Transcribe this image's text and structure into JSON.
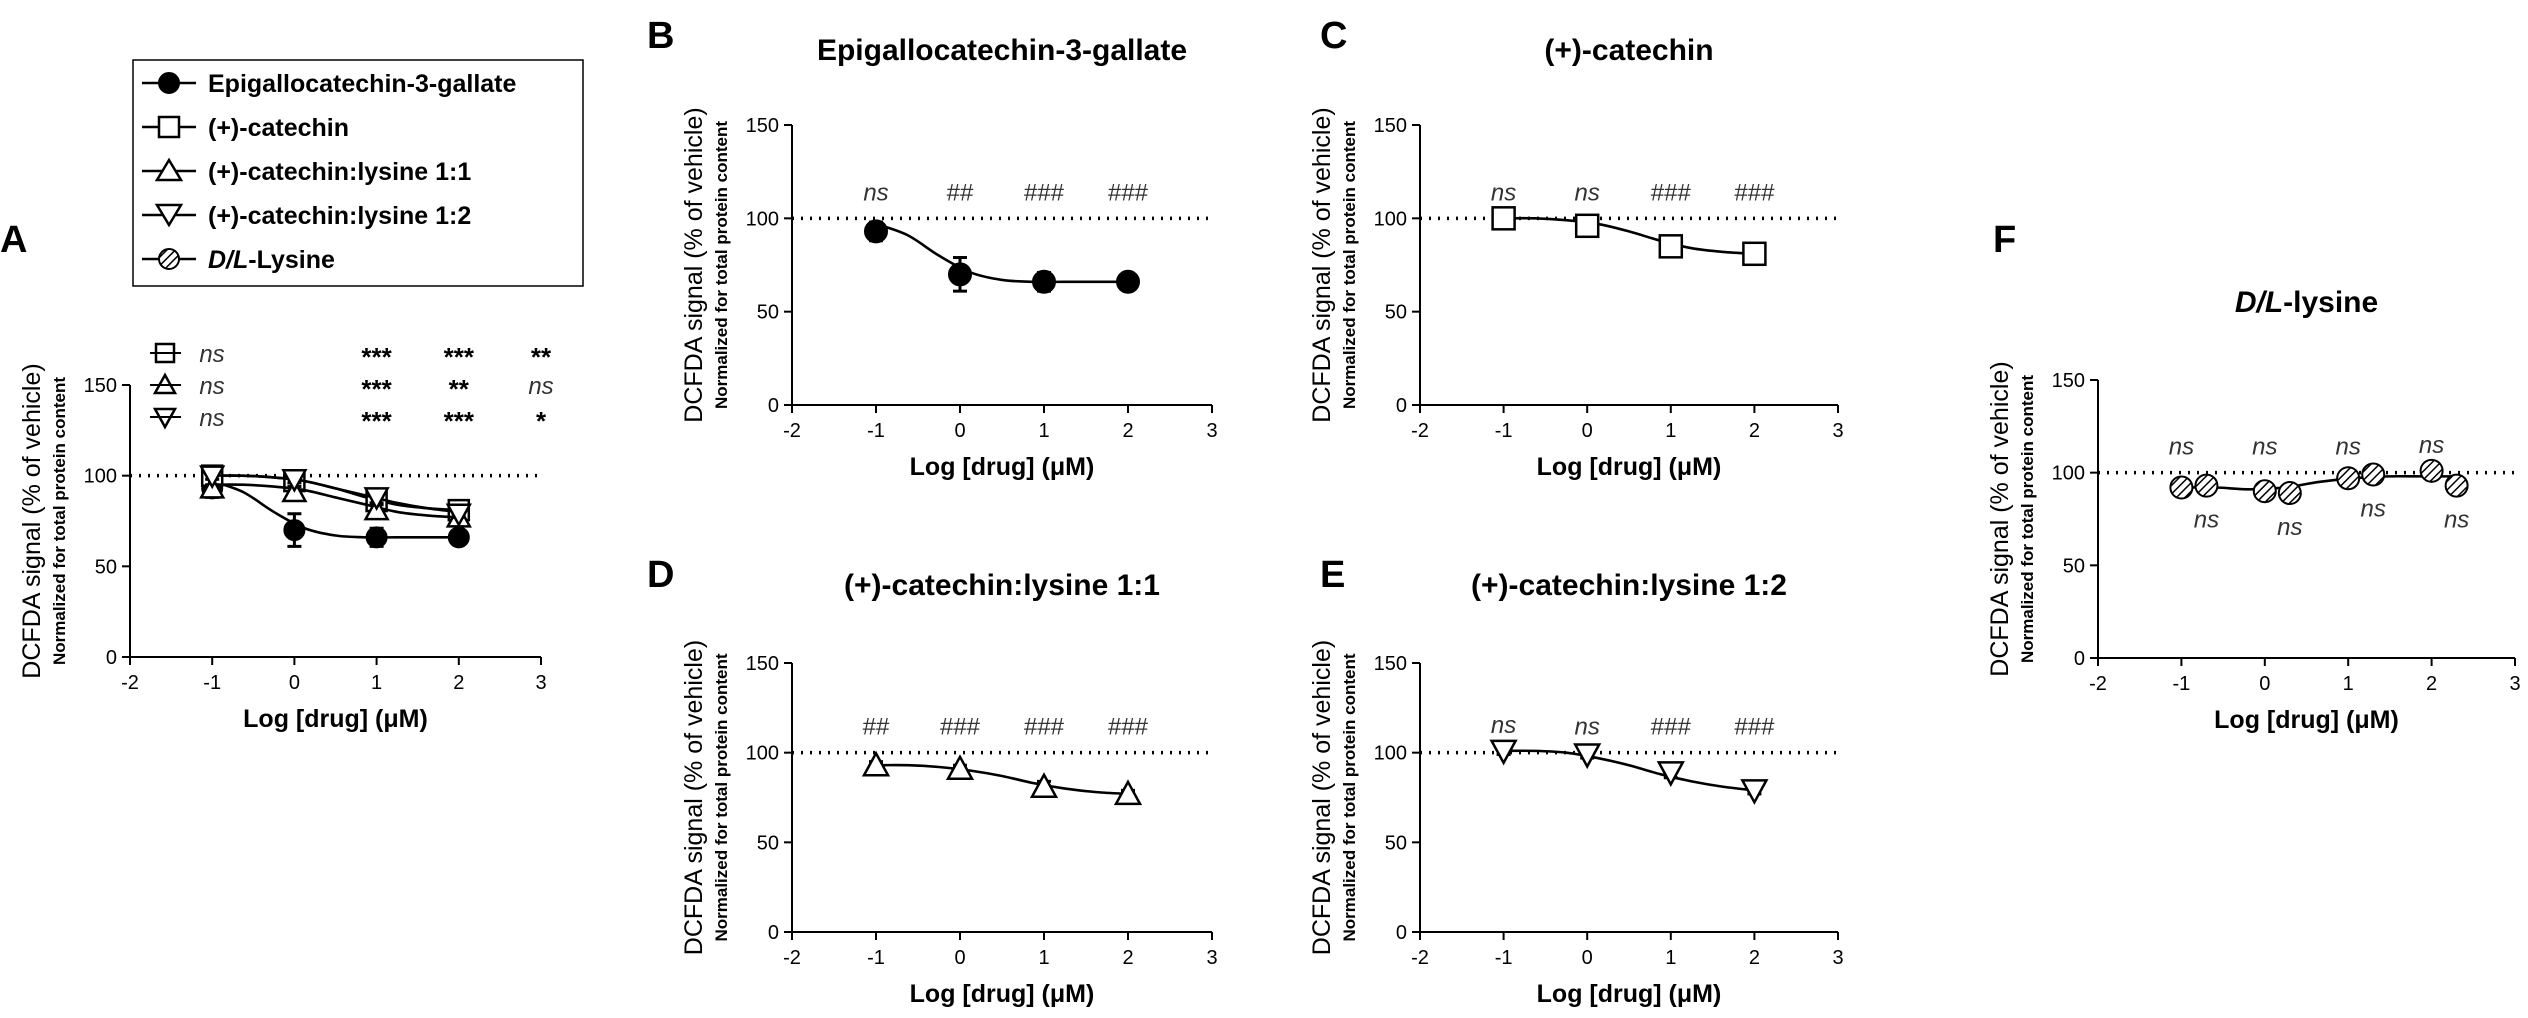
{
  "legend": {
    "entries": [
      {
        "series": "egcg",
        "marker": "circle",
        "fill": "black",
        "label": "Epigallocatechin-3-gallate"
      },
      {
        "series": "catechin",
        "marker": "square",
        "fill": "white",
        "label": "(+)-catechin"
      },
      {
        "series": "cat_lys_11",
        "marker": "triangle-up",
        "fill": "white",
        "label": "(+)-catechin:lysine 1:1"
      },
      {
        "series": "cat_lys_12",
        "marker": "triangle-down",
        "fill": "white",
        "label": "(+)-catechin:lysine 1:2"
      },
      {
        "series": "lysine",
        "marker": "hatched-circle",
        "fill": "hatch",
        "label_italic": "D/L",
        "label_rest": "-Lysine"
      }
    ]
  },
  "colors": {
    "ink": "#000000",
    "background": "#ffffff",
    "annotation": "#333333"
  },
  "chart_data": [
    {
      "id": "A",
      "panel_label": "A",
      "type": "line",
      "title": "",
      "xlabel": "Log [drug] (μM)",
      "ylabel": "DCFDA signal (% of vehicle)",
      "ylabel_sub": "Normalized for total protein content",
      "xlim": [
        -2,
        3
      ],
      "xticks": [
        "-2",
        "-1",
        "0",
        "1",
        "2",
        "3"
      ],
      "ylim": [
        0,
        150
      ],
      "yticks": [
        "0",
        "50",
        "100",
        "150"
      ],
      "reference_line": 100,
      "series": [
        {
          "name": "Epigallocatechin-3-gallate",
          "marker": "circle",
          "x": [
            -1,
            0,
            1,
            2
          ],
          "y": [
            93,
            70,
            66,
            66
          ],
          "err": [
            5,
            9,
            5,
            2
          ],
          "fit": [
            97,
            91,
            80,
            71,
            67,
            66,
            66,
            66,
            66
          ]
        },
        {
          "name": "(+)-catechin",
          "marker": "square",
          "x": [
            -1,
            0,
            1,
            2
          ],
          "y": [
            100,
            97,
            86,
            81
          ],
          "err": [
            2,
            3,
            4,
            2
          ],
          "fit": [
            100,
            100,
            99,
            97,
            93,
            88,
            84,
            82,
            81
          ]
        },
        {
          "name": "(+)-catechin:lysine 1:1",
          "marker": "triangle-up",
          "x": [
            -1,
            0,
            1,
            2
          ],
          "y": [
            93,
            91,
            81,
            77
          ],
          "err": [
            2,
            3,
            3,
            2
          ],
          "fit": [
            95,
            95,
            94,
            92,
            88,
            84,
            80,
            78,
            77
          ]
        },
        {
          "name": "(+)-catechin:lysine 1:2",
          "marker": "triangle-down",
          "x": [
            -1,
            0,
            1,
            2
          ],
          "y": [
            100,
            98,
            88,
            79
          ],
          "err": [
            2,
            2,
            3,
            2
          ],
          "fit": [
            100,
            100,
            99,
            97,
            93,
            89,
            85,
            82,
            80
          ]
        }
      ],
      "significance_rows": [
        {
          "marker": "square",
          "cells": [
            "ns",
            "***",
            "***",
            "**"
          ]
        },
        {
          "marker": "triangle-up",
          "cells": [
            "ns",
            "***",
            "**",
            "ns"
          ]
        },
        {
          "marker": "triangle-down",
          "cells": [
            "ns",
            "***",
            "***",
            "*"
          ]
        }
      ]
    },
    {
      "id": "B",
      "panel_label": "B",
      "type": "line",
      "title": "Epigallocatechin-3-gallate",
      "xlabel": "Log [drug] (μM)",
      "ylabel": "DCFDA signal (% of vehicle)",
      "ylabel_sub": "Normalized for total protein content",
      "xlim": [
        -2,
        3
      ],
      "xticks": [
        "-2",
        "-1",
        "0",
        "1",
        "2",
        "3"
      ],
      "ylim": [
        0,
        150
      ],
      "yticks": [
        "0",
        "50",
        "100",
        "150"
      ],
      "reference_line": 100,
      "series": [
        {
          "name": "Epigallocatechin-3-gallate",
          "marker": "circle",
          "x": [
            -1,
            0,
            1,
            2
          ],
          "y": [
            93,
            70,
            66,
            66
          ],
          "err": [
            5,
            9,
            5,
            2
          ],
          "fit": [
            97,
            91,
            80,
            71,
            67,
            66,
            66,
            66,
            66
          ]
        }
      ],
      "annotations": [
        {
          "x": -1,
          "text": "ns"
        },
        {
          "x": 0,
          "text": "##"
        },
        {
          "x": 1,
          "text": "###"
        },
        {
          "x": 2,
          "text": "###"
        }
      ]
    },
    {
      "id": "C",
      "panel_label": "C",
      "type": "line",
      "title": "(+)-catechin",
      "xlabel": "Log [drug] (μM)",
      "ylabel": "DCFDA signal (% of vehicle)",
      "ylabel_sub": "Normalized for total protein content",
      "xlim": [
        -2,
        3
      ],
      "xticks": [
        "-2",
        "-1",
        "0",
        "1",
        "2",
        "3"
      ],
      "ylim": [
        0,
        150
      ],
      "yticks": [
        "0",
        "50",
        "100",
        "150"
      ],
      "reference_line": 100,
      "series": [
        {
          "name": "(+)-catechin",
          "marker": "square",
          "x": [
            -1,
            0,
            1,
            2
          ],
          "y": [
            100,
            96,
            85,
            81
          ],
          "err": [
            2,
            2,
            3,
            2
          ],
          "fit": [
            100,
            100,
            99,
            97,
            93,
            88,
            84,
            82,
            81
          ]
        }
      ],
      "annotations": [
        {
          "x": -1,
          "text": "ns"
        },
        {
          "x": 0,
          "text": "ns"
        },
        {
          "x": 1,
          "text": "###"
        },
        {
          "x": 2,
          "text": "###"
        }
      ]
    },
    {
      "id": "D",
      "panel_label": "D",
      "type": "line",
      "title": "(+)-catechin:lysine 1:1",
      "xlabel": "Log [drug] (μM)",
      "ylabel": "DCFDA signal (% of vehicle)",
      "ylabel_sub": "Normalized for total protein content",
      "xlim": [
        -2,
        3
      ],
      "xticks": [
        "-2",
        "-1",
        "0",
        "1",
        "2",
        "3"
      ],
      "ylim": [
        0,
        150
      ],
      "yticks": [
        "0",
        "50",
        "100",
        "150"
      ],
      "reference_line": 100,
      "series": [
        {
          "name": "(+)-catechin:lysine 1:1",
          "marker": "triangle-up",
          "x": [
            -1,
            0,
            1,
            2
          ],
          "y": [
            93,
            91,
            81,
            77
          ],
          "err": [
            2,
            2,
            3,
            2
          ],
          "fit": [
            93,
            93,
            92,
            90,
            87,
            83,
            80,
            78,
            77
          ]
        }
      ],
      "annotations": [
        {
          "x": -1,
          "text": "##"
        },
        {
          "x": 0,
          "text": "###"
        },
        {
          "x": 1,
          "text": "###"
        },
        {
          "x": 2,
          "text": "###"
        }
      ]
    },
    {
      "id": "E",
      "panel_label": "E",
      "type": "line",
      "title": "(+)-catechin:lysine 1:2",
      "xlabel": "Log [drug] (μM)",
      "ylabel": "DCFDA signal (% of vehicle)",
      "ylabel_sub": "Normalized for total protein content",
      "xlim": [
        -2,
        3
      ],
      "xticks": [
        "-2",
        "-1",
        "0",
        "1",
        "2",
        "3"
      ],
      "ylim": [
        0,
        150
      ],
      "yticks": [
        "0",
        "50",
        "100",
        "150"
      ],
      "reference_line": 100,
      "series": [
        {
          "name": "(+)-catechin:lysine 1:2",
          "marker": "triangle-down",
          "x": [
            -1,
            0,
            1,
            2
          ],
          "y": [
            101,
            99,
            89,
            79
          ],
          "err": [
            2,
            2,
            3,
            2
          ],
          "fit": [
            101,
            101,
            100,
            97,
            93,
            88,
            84,
            81,
            79
          ]
        }
      ],
      "annotations": [
        {
          "x": -1,
          "text": "ns"
        },
        {
          "x": 0,
          "text": "ns"
        },
        {
          "x": 1,
          "text": "###"
        },
        {
          "x": 2,
          "text": "###"
        }
      ]
    },
    {
      "id": "F",
      "panel_label": "F",
      "type": "line",
      "title_italic": "D/L",
      "title_rest": "-lysine",
      "xlabel": "Log [drug] (μM)",
      "ylabel": "DCFDA signal (% of vehicle)",
      "ylabel_sub": "Normalized for total protein content",
      "xlim": [
        -2,
        3
      ],
      "xticks": [
        "-2",
        "-1",
        "0",
        "1",
        "2",
        "3"
      ],
      "ylim": [
        0,
        150
      ],
      "yticks": [
        "0",
        "50",
        "100",
        "150"
      ],
      "reference_line": 100,
      "series": [
        {
          "name": "D/L-Lysine",
          "marker": "hatched-circle",
          "x": [
            -1,
            -0.7,
            0,
            0.3,
            1,
            1.3,
            2,
            2.3
          ],
          "y": [
            92,
            93,
            90,
            89,
            97,
            99,
            101,
            93
          ],
          "err": [
            0,
            0,
            0,
            0,
            0,
            0,
            0,
            0
          ],
          "fit": [
            92,
            92,
            91,
            92,
            95,
            97,
            98,
            98,
            98
          ]
        }
      ],
      "annotations": [
        {
          "x": -1,
          "text": "ns",
          "pos": "above"
        },
        {
          "x": -0.7,
          "text": "ns",
          "pos": "below"
        },
        {
          "x": 0,
          "text": "ns",
          "pos": "above"
        },
        {
          "x": 0.3,
          "text": "ns",
          "pos": "below"
        },
        {
          "x": 1,
          "text": "ns",
          "pos": "above"
        },
        {
          "x": 1.3,
          "text": "ns",
          "pos": "below"
        },
        {
          "x": 2,
          "text": "ns",
          "pos": "above"
        },
        {
          "x": 2.3,
          "text": "ns",
          "pos": "below"
        }
      ]
    }
  ]
}
